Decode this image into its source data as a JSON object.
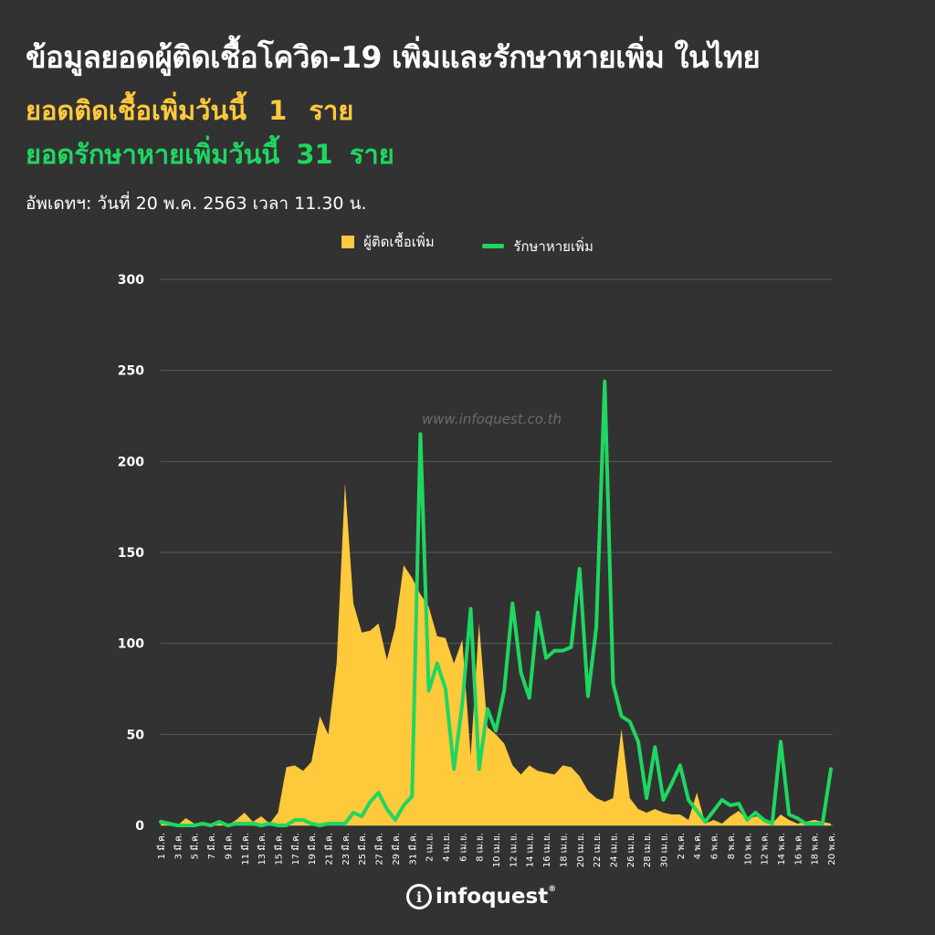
{
  "header": {
    "title": "ข้อมูลยอดผู้ติดเชื้อโควิด-19 เพิ่มและรักษาหายเพิ่ม ในไทย",
    "infected_label": "ยอดติดเชื้อเพิ่มวันนี้",
    "infected_value": "1",
    "infected_unit": "ราย",
    "recovered_label": "ยอดรักษาหายเพิ่มวันนี้",
    "recovered_value": "31",
    "recovered_unit": "ราย",
    "update_text": "อัพเดทฯ: วันที่  20 พ.ค. 2563 เวลา 11.30 น."
  },
  "watermark": "www.infoquest.co.th",
  "logo": {
    "mark": "i",
    "text": "infoquest",
    "reg": "®"
  },
  "colors": {
    "bg": "#333232",
    "infected": "#ffc93c",
    "recovered": "#1ed760",
    "grid": "#5a5a5a"
  },
  "chart_data": {
    "type": "area",
    "ylim": [
      0,
      300
    ],
    "yticks": [
      0,
      50,
      100,
      150,
      200,
      250,
      300
    ],
    "grid": true,
    "legend_placement": "top-center",
    "x_tick_labels": [
      "1 มี.ค.",
      "3 มี.ค.",
      "5 มี.ค.",
      "7 มี.ค.",
      "9 มี.ค.",
      "11 มี.ค.",
      "13 มี.ค.",
      "15 มี.ค.",
      "17 มี.ค.",
      "19 มี.ค.",
      "21 มี.ค.",
      "23 มี.ค.",
      "25 มี.ค.",
      "27 มี.ค.",
      "29 มี.ค.",
      "31 มี.ค.",
      "2 เม.ย.",
      "4 เม.ย.",
      "6 เม.ย.",
      "8 เม.ย.",
      "10 เม.ย.",
      "12 เม.ย.",
      "14 เม.ย.",
      "16 เม.ย.",
      "18 เม.ย.",
      "20 เม.ย.",
      "22 เม.ย.",
      "24 เม.ย.",
      "26 เม.ย.",
      "28 เม.ย.",
      "30 เม.ย.",
      "2 พ.ค.",
      "4 พ.ค.",
      "6 พ.ค.",
      "8 พ.ค.",
      "10 พ.ค.",
      "12 พ.ค.",
      "14 พ.ค.",
      "16 พ.ค.",
      "18 พ.ค.",
      "20 พ.ค."
    ],
    "series": [
      {
        "name": "ผู้ติดเชื้อเพิ่ม",
        "style": "area",
        "values": [
          1,
          1,
          0,
          4,
          1,
          0,
          1,
          1,
          0,
          3,
          7,
          2,
          5,
          1,
          7,
          32,
          33,
          30,
          35,
          60,
          50,
          89,
          188,
          122,
          106,
          107,
          111,
          91,
          109,
          143,
          136,
          127,
          120,
          104,
          103,
          89,
          102,
          38,
          111,
          54,
          50,
          45,
          33,
          28,
          33,
          30,
          29,
          28,
          33,
          32,
          27,
          19,
          15,
          13,
          15,
          53,
          15,
          9,
          7,
          9,
          7,
          6,
          6,
          3,
          18,
          1,
          3,
          1,
          5,
          8,
          3,
          5,
          4,
          1,
          6,
          3,
          1,
          2,
          3,
          2,
          1
        ]
      },
      {
        "name": "รักษาหายเพิ่ม",
        "style": "line",
        "values": [
          2,
          1,
          0,
          0,
          0,
          1,
          0,
          2,
          0,
          1,
          1,
          1,
          0,
          1,
          0,
          0,
          3,
          3,
          1,
          0,
          1,
          1,
          1,
          7,
          5,
          13,
          18,
          9,
          3,
          11,
          16,
          215,
          74,
          89,
          75,
          31,
          67,
          119,
          31,
          64,
          52,
          74,
          122,
          84,
          70,
          117,
          92,
          96,
          96,
          98,
          141,
          71,
          109,
          244,
          78,
          60,
          57,
          46,
          15,
          43,
          14,
          23,
          33,
          14,
          8,
          2,
          8,
          14,
          11,
          12,
          3,
          7,
          3,
          1,
          46,
          6,
          4,
          1,
          1,
          1,
          31
        ]
      }
    ]
  }
}
